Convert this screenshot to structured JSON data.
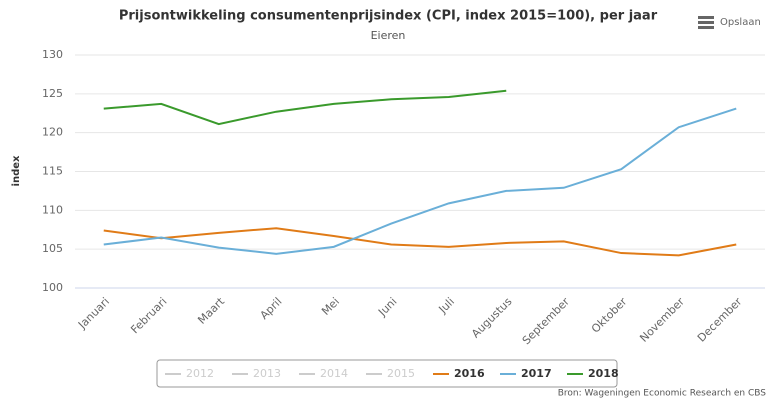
{
  "chart_data": {
    "type": "line",
    "title": "Prijsontwikkeling consumentenprijsindex (CPI, index 2015=100), per jaar",
    "subtitle": "Eieren",
    "y_label": "index",
    "button": "Opslaan",
    "source": "Bron: Wageningen Economic Research en CBS",
    "categories": [
      "Januari",
      "Februari",
      "Maart",
      "April",
      "Mei",
      "Juni",
      "Juli",
      "Augustus",
      "September",
      "Oktober",
      "November",
      "December"
    ],
    "ylim": [
      100,
      130
    ],
    "yticks": [
      100,
      105,
      110,
      115,
      120,
      125,
      130
    ],
    "grid": true,
    "legend": "bottom",
    "series": [
      {
        "name": "2012",
        "color": "#cccccc",
        "visible": false,
        "values": [
          null,
          null,
          null,
          null,
          null,
          null,
          null,
          null,
          null,
          null,
          null,
          null
        ]
      },
      {
        "name": "2013",
        "color": "#cccccc",
        "visible": false,
        "values": [
          null,
          null,
          null,
          null,
          null,
          null,
          null,
          null,
          null,
          null,
          null,
          null
        ]
      },
      {
        "name": "2014",
        "color": "#cccccc",
        "visible": false,
        "values": [
          null,
          null,
          null,
          null,
          null,
          null,
          null,
          null,
          null,
          null,
          null,
          null
        ]
      },
      {
        "name": "2015",
        "color": "#cccccc",
        "visible": false,
        "values": [
          null,
          null,
          null,
          null,
          null,
          null,
          null,
          null,
          null,
          null,
          null,
          null
        ]
      },
      {
        "name": "2016",
        "color": "#e07b17",
        "visible": true,
        "values": [
          107.4,
          106.4,
          107.1,
          107.7,
          106.7,
          105.6,
          105.3,
          105.8,
          106.0,
          104.5,
          104.2,
          105.6
        ]
      },
      {
        "name": "2017",
        "color": "#6aafd8",
        "visible": true,
        "values": [
          105.6,
          106.5,
          105.2,
          104.4,
          105.3,
          108.3,
          110.9,
          112.5,
          112.9,
          115.3,
          120.7,
          123.1
        ]
      },
      {
        "name": "2018",
        "color": "#3a9a2c",
        "visible": true,
        "values": [
          123.1,
          123.7,
          121.1,
          122.7,
          123.7,
          124.3,
          124.6,
          125.4,
          null,
          null,
          null,
          null
        ]
      }
    ]
  }
}
